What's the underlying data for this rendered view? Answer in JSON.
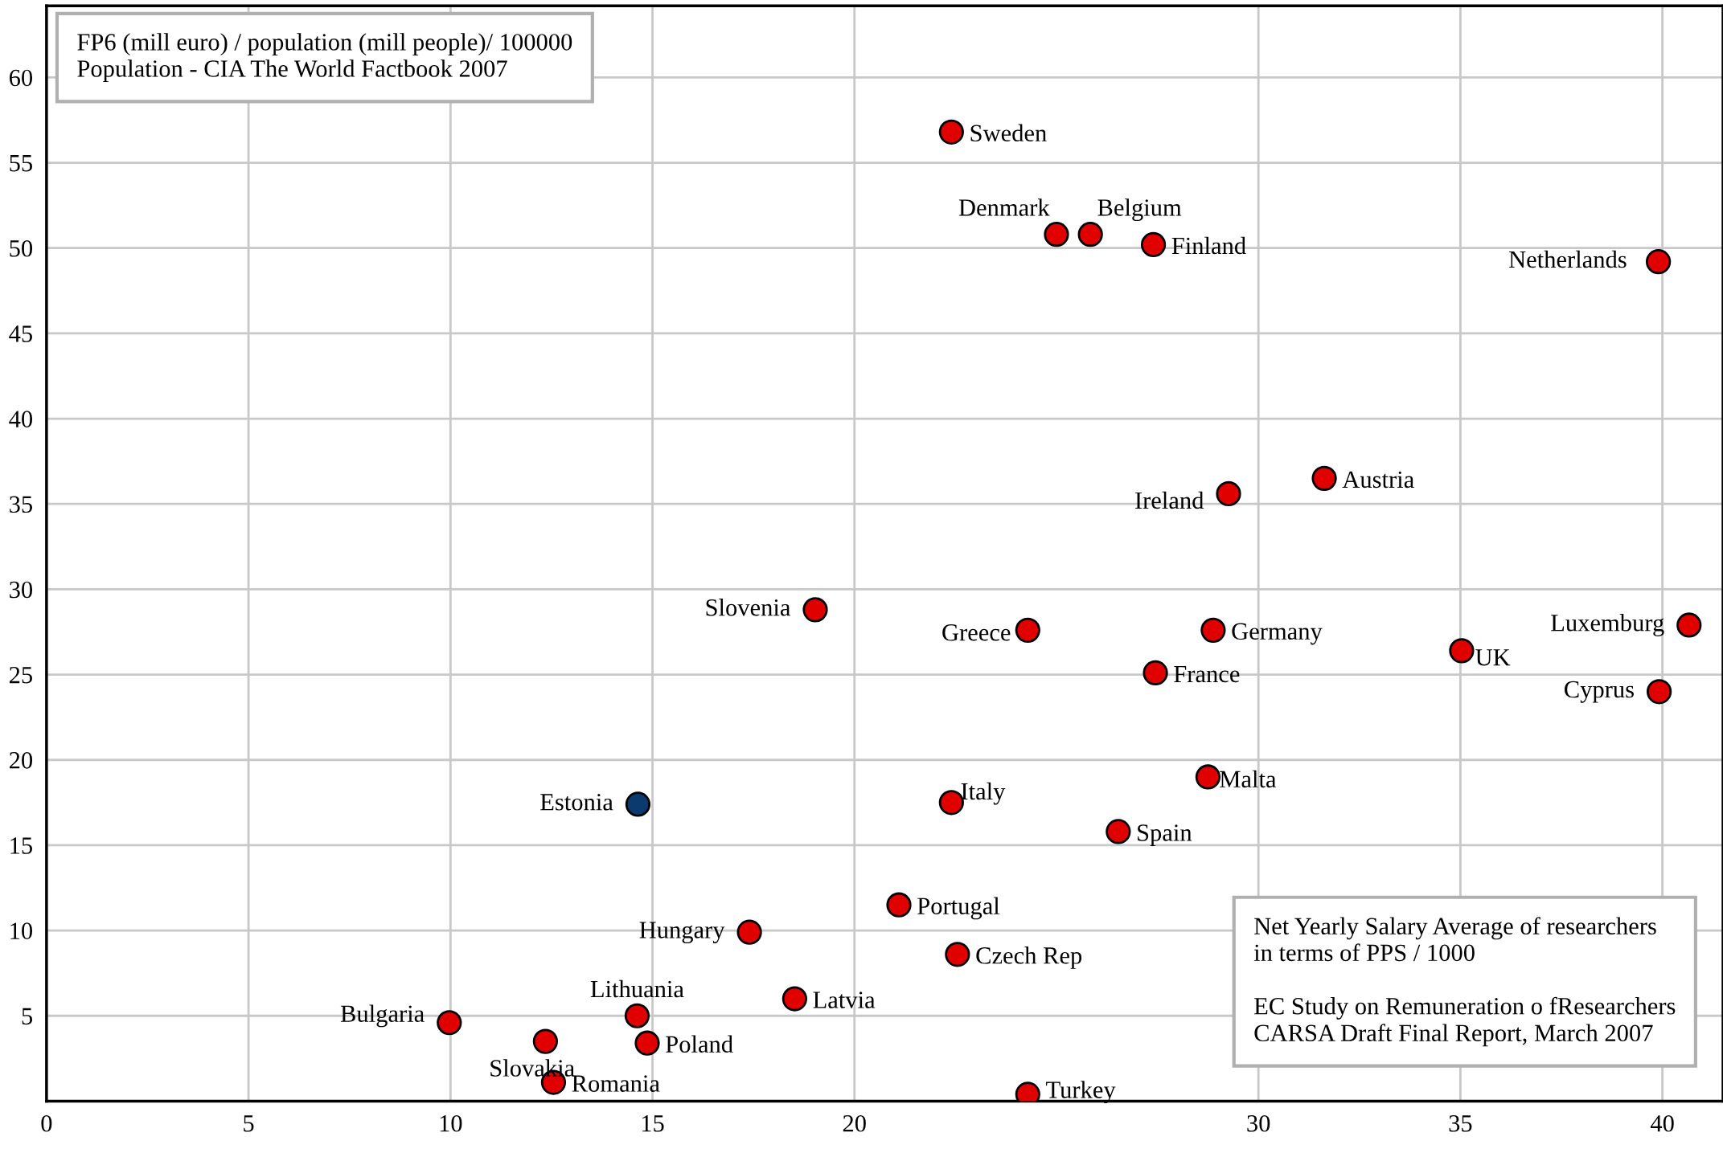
{
  "chart_data": {
    "type": "scatter",
    "series": [
      {
        "color": "#e00000",
        "x": [
          22.4,
          25.0,
          25.84,
          27.4,
          39.9,
          31.63,
          29.26,
          19.03,
          24.29,
          28.88,
          40.66,
          35.03,
          27.45,
          39.92,
          28.75,
          22.4,
          26.53,
          21.1,
          17.4,
          22.55,
          18.52,
          14.62,
          9.97,
          12.35,
          14.87,
          12.55,
          24.29
        ],
        "values": [
          56.8,
          50.8,
          50.8,
          50.2,
          49.2,
          36.5,
          35.6,
          28.8,
          27.6,
          27.6,
          27.9,
          26.4,
          25.1,
          24.0,
          19.0,
          17.5,
          15.8,
          11.5,
          9.9,
          8.6,
          6.0,
          5.0,
          4.6,
          3.5,
          3.4,
          1.1,
          0.4
        ]
      },
      {
        "color": "#0b3a6e",
        "x": [
          14.64
        ],
        "values": [
          17.4
        ]
      }
    ],
    "marker": "circle",
    "xlim": [
      0,
      41.5
    ],
    "ylim": [
      0,
      64.2
    ],
    "xticks": [
      0,
      5,
      10,
      15,
      20,
      30,
      35,
      40
    ],
    "yticks": [
      5,
      10,
      15,
      20,
      25,
      30,
      35,
      40,
      45,
      50,
      55,
      60
    ],
    "grid": true,
    "annotations": [
      "FP6 (mill euro) / population (mill people)/ 100000\nPopulation - CIA The World Factbook 2007",
      "Net Yearly Salary Average of researchers\nin terms of PPS / 1000\n\nEC Study on Remuneration o fResearchers\nCARSA Draft Final Report, March 2007",
      {
        "text": "Sweden",
        "x": 22.4,
        "y": 56.8
      },
      {
        "text": "Denmark",
        "x": 25.0,
        "y": 50.8
      },
      {
        "text": "Belgium",
        "x": 25.84,
        "y": 50.8
      },
      {
        "text": "Finland",
        "x": 27.4,
        "y": 50.2
      },
      {
        "text": "Netherlands",
        "x": 39.9,
        "y": 49.2
      },
      {
        "text": "Austria",
        "x": 31.63,
        "y": 36.5
      },
      {
        "text": "Ireland",
        "x": 29.26,
        "y": 35.6
      },
      {
        "text": "Slovenia",
        "x": 19.03,
        "y": 28.8
      },
      {
        "text": "Greece",
        "x": 24.29,
        "y": 27.6
      },
      {
        "text": "Germany",
        "x": 28.88,
        "y": 27.6
      },
      {
        "text": "Luxemburg",
        "x": 40.66,
        "y": 27.9
      },
      {
        "text": "UK",
        "x": 35.03,
        "y": 26.4
      },
      {
        "text": "France",
        "x": 27.45,
        "y": 25.1
      },
      {
        "text": "Cyprus",
        "x": 39.92,
        "y": 24.0
      },
      {
        "text": "Malta",
        "x": 28.75,
        "y": 19.0
      },
      {
        "text": "Estonia",
        "x": 14.64,
        "y": 17.4
      },
      {
        "text": "Italy",
        "x": 22.4,
        "y": 17.5
      },
      {
        "text": "Spain",
        "x": 26.53,
        "y": 15.8
      },
      {
        "text": "Portugal",
        "x": 21.1,
        "y": 11.5
      },
      {
        "text": "Hungary",
        "x": 17.4,
        "y": 9.9
      },
      {
        "text": "Czech Rep",
        "x": 22.55,
        "y": 8.6
      },
      {
        "text": "Latvia",
        "x": 18.52,
        "y": 6.0
      },
      {
        "text": "Lithuania",
        "x": 14.62,
        "y": 5.0
      },
      {
        "text": "Bulgaria",
        "x": 9.97,
        "y": 4.6
      },
      {
        "text": "Slovakia",
        "x": 12.35,
        "y": 3.5
      },
      {
        "text": "Poland",
        "x": 14.87,
        "y": 3.4
      },
      {
        "text": "Romania",
        "x": 12.55,
        "y": 1.1
      },
      {
        "text": "Turkey",
        "x": 24.29,
        "y": 0.4
      }
    ]
  }
}
